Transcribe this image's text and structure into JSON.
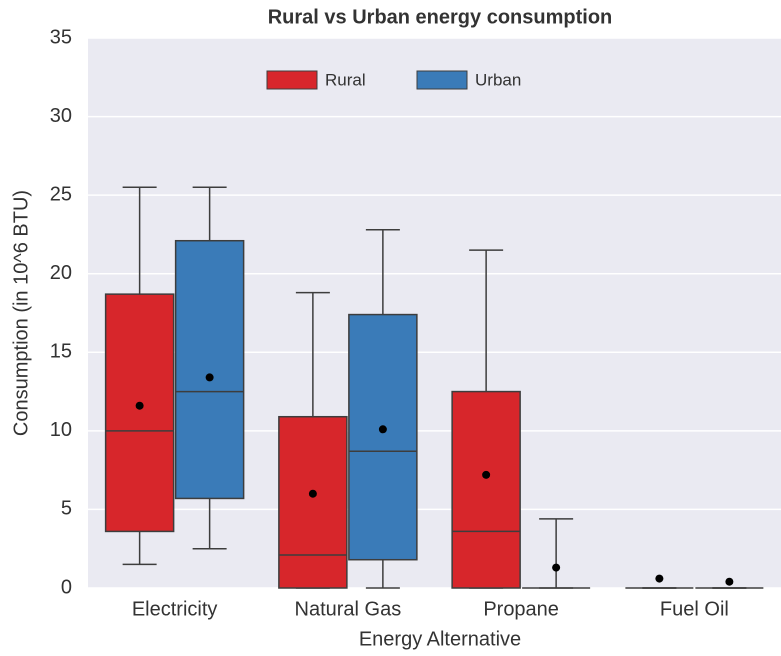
{
  "chart_data": {
    "type": "box",
    "title": "Rural vs Urban energy consumption",
    "x_label": "Energy Alternative",
    "y_label": "Consumption (in 10^6 BTU)",
    "categories": [
      "Electricity",
      "Natural Gas",
      "Propane",
      "Fuel Oil"
    ],
    "ylim": [
      0,
      35
    ],
    "yticks": [
      0,
      5,
      10,
      15,
      20,
      25,
      30,
      35
    ],
    "grid": true,
    "series": [
      {
        "name": "Rural",
        "color": "#d7262b",
        "whislo": [
          1.5,
          0,
          0,
          0
        ],
        "q1": [
          3.6,
          0,
          0,
          0
        ],
        "median": [
          10.0,
          2.1,
          3.6,
          0
        ],
        "q3": [
          18.7,
          10.9,
          12.5,
          0
        ],
        "whishi": [
          25.5,
          18.8,
          21.5,
          0
        ],
        "mean": [
          11.6,
          6.0,
          7.2,
          0.6
        ]
      },
      {
        "name": "Urban",
        "color": "#3a7bb8",
        "whislo": [
          2.5,
          0,
          0,
          0
        ],
        "q1": [
          5.7,
          1.8,
          0,
          0
        ],
        "median": [
          12.5,
          8.7,
          0,
          0
        ],
        "q3": [
          22.1,
          17.4,
          0,
          0
        ],
        "whishi": [
          25.5,
          22.8,
          4.4,
          0
        ],
        "mean": [
          13.4,
          10.1,
          1.3,
          0.4
        ]
      }
    ]
  }
}
